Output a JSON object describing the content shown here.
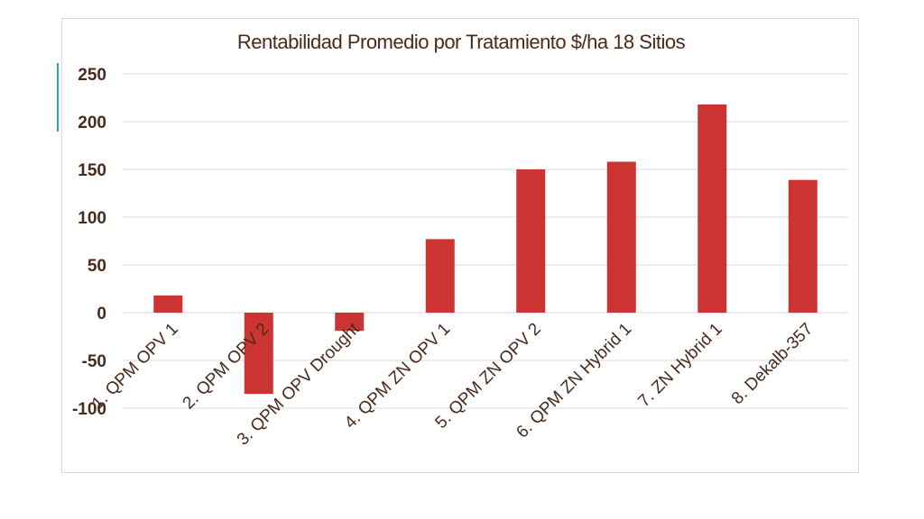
{
  "chart_data": {
    "type": "bar",
    "title": "Rentabilidad Promedio por Tratamiento $/ha 18 Sitios",
    "xlabel": "",
    "ylabel": "",
    "categories": [
      "1. QPM OPV 1",
      "2. QPM OPV 2",
      "3. QPM OPV Drought",
      "4. QPM ZN OPV 1",
      "5. QPM ZN OPV 2",
      "6. QPM ZN Hybrid 1",
      "7. ZN Hybrid 1",
      "8. Dekalb-357"
    ],
    "values": [
      18,
      -85,
      -19,
      77,
      150,
      158,
      218,
      139
    ],
    "ylim": [
      -100,
      250
    ],
    "yticks": [
      250,
      200,
      150,
      100,
      50,
      0,
      -50,
      -100
    ],
    "grid": true,
    "legend": "none",
    "colors": {
      "bar": "#cc3333",
      "text": "#4a2a1a",
      "grid": "#d9d9d9"
    }
  }
}
